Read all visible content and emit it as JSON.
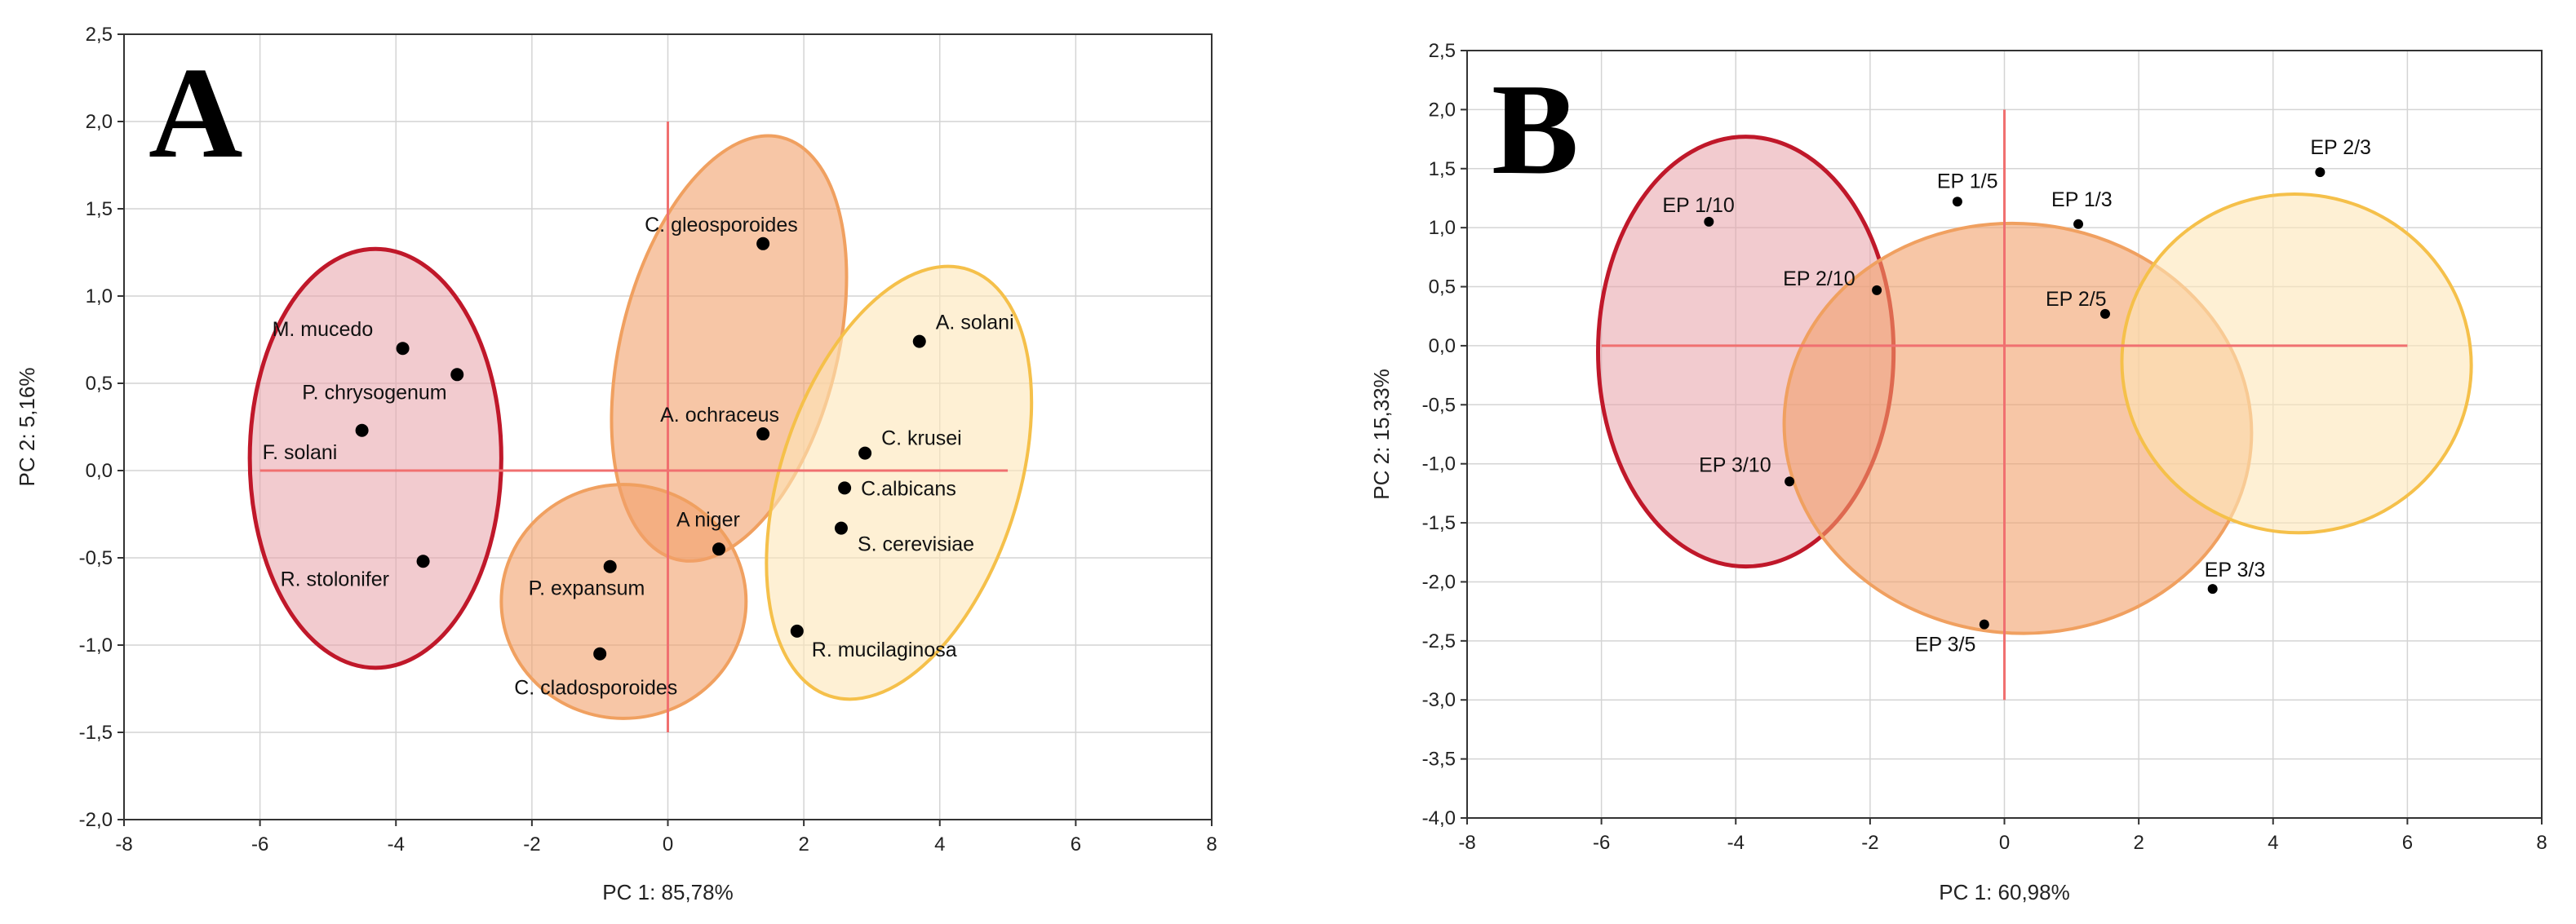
{
  "chart_data": [
    {
      "type": "scatter",
      "panel_label": "A",
      "xlabel": "PC 1: 85,78%",
      "ylabel": "PC 2: 5,16%",
      "xlim": [
        -8,
        8
      ],
      "ylim": [
        -2.0,
        2.5
      ],
      "xticks": [
        -8,
        -6,
        -4,
        -2,
        0,
        2,
        4,
        6,
        8
      ],
      "xtick_labels": [
        "-8",
        "-6",
        "-4",
        "-2",
        "0",
        "2",
        "4",
        "6",
        "8"
      ],
      "yticks": [
        2.5,
        2.0,
        1.5,
        1.0,
        0.5,
        0.0,
        -0.5,
        -1.0,
        -1.5,
        -2.0
      ],
      "ytick_labels": [
        "2,5",
        "2,0",
        "1,5",
        "1,0",
        "0,5",
        "0,0",
        "-0,5",
        "-1,0",
        "-1,5",
        "-2,0"
      ],
      "grid": true,
      "origin_lines": {
        "h": {
          "x": [
            -6,
            5
          ],
          "y": 0
        },
        "v": {
          "x": 0,
          "y": [
            -1.5,
            2.0
          ]
        }
      },
      "points": [
        {
          "label": "M. mucedo",
          "x": -3.9,
          "y": 0.7
        },
        {
          "label": "P. chrysogenum",
          "x": -3.1,
          "y": 0.55
        },
        {
          "label": "F. solani",
          "x": -4.5,
          "y": 0.23
        },
        {
          "label": "R. stolonifer",
          "x": -3.6,
          "y": -0.52
        },
        {
          "label": "C. gleosporoides",
          "x": 1.4,
          "y": 1.3
        },
        {
          "label": "A. ochraceus",
          "x": 1.4,
          "y": 0.21
        },
        {
          "label": "A niger",
          "x": 0.75,
          "y": -0.45
        },
        {
          "label": "P. expansum",
          "x": -0.85,
          "y": -0.55
        },
        {
          "label": "C. cladosporoides",
          "x": -1.0,
          "y": -1.05
        },
        {
          "label": "A. solani",
          "x": 3.7,
          "y": 0.74
        },
        {
          "label": "C. krusei",
          "x": 2.9,
          "y": 0.1
        },
        {
          "label": "C.albicans",
          "x": 2.6,
          "y": -0.1
        },
        {
          "label": "S. cerevisiae",
          "x": 2.55,
          "y": -0.33
        },
        {
          "label": "R. mucilaginosa",
          "x": 1.9,
          "y": -0.92
        }
      ],
      "groups": [
        {
          "name": "group-red",
          "cx": -4.3,
          "cy": 0.07,
          "rx": 1.85,
          "ry": 1.2,
          "angle": 0,
          "fill": "#e8a0a8",
          "fill_opacity": 0.55,
          "stroke": "#c0182a"
        },
        {
          "name": "group-orange-upper",
          "cx": 0.9,
          "cy": 0.7,
          "rx": 3.2,
          "ry": 0.62,
          "angle": -76,
          "fill": "#f2a06a",
          "fill_opacity": 0.6,
          "stroke": "#f0a060"
        },
        {
          "name": "group-orange-lower",
          "cx": -0.65,
          "cy": -0.75,
          "rx": 1.8,
          "ry": 0.67,
          "angle": 0,
          "fill": "#f2a06a",
          "fill_opacity": 0.6,
          "stroke": "#f0a060"
        },
        {
          "name": "group-yellow",
          "cx": 3.4,
          "cy": -0.07,
          "rx": 3.3,
          "ry": 0.68,
          "angle": -72,
          "fill": "#fde6b8",
          "fill_opacity": 0.6,
          "stroke": "#f5c04a"
        }
      ]
    },
    {
      "type": "scatter",
      "panel_label": "B",
      "xlabel": "PC 1: 60,98%",
      "ylabel": "PC 2: 15,33%",
      "xlim": [
        -8,
        8
      ],
      "ylim": [
        -4.0,
        2.5
      ],
      "xticks": [
        -8,
        -6,
        -4,
        -2,
        0,
        2,
        4,
        6,
        8
      ],
      "xtick_labels": [
        "-8",
        "-6",
        "-4",
        "-2",
        "0",
        "2",
        "4",
        "6",
        "8"
      ],
      "yticks": [
        2.5,
        2.0,
        1.5,
        1.0,
        0.5,
        0.0,
        -0.5,
        -1.0,
        -1.5,
        -2.0,
        -2.5,
        -3.0,
        -3.5,
        -4.0
      ],
      "ytick_labels": [
        "2,5",
        "2,0",
        "1,5",
        "1,0",
        "0,5",
        "0,0",
        "-0,5",
        "-1,0",
        "-1,5",
        "-2,0",
        "-2,5",
        "-3,0",
        "-3,5",
        "-4,0"
      ],
      "grid": true,
      "origin_lines": {
        "h": {
          "x": [
            -6,
            6
          ],
          "y": 0
        },
        "v": {
          "x": 0,
          "y": [
            -3.0,
            2.0
          ]
        }
      },
      "points": [
        {
          "label": "EP 1/10",
          "x": -4.4,
          "y": 1.05
        },
        {
          "label": "EP 2/10",
          "x": -1.9,
          "y": 0.47
        },
        {
          "label": "EP 3/10",
          "x": -3.2,
          "y": -1.15
        },
        {
          "label": "EP 1/5",
          "x": -0.7,
          "y": 1.22
        },
        {
          "label": "EP 1/3",
          "x": 1.1,
          "y": 1.03
        },
        {
          "label": "EP 2/5",
          "x": 1.5,
          "y": 0.27
        },
        {
          "label": "EP 3/5",
          "x": -0.3,
          "y": -2.36
        },
        {
          "label": "EP 2/3",
          "x": 4.7,
          "y": 1.47
        },
        {
          "label": "EP 3/3",
          "x": 3.1,
          "y": -2.06
        }
      ],
      "groups": [
        {
          "name": "group-red",
          "cx": -3.85,
          "cy": -0.05,
          "rx": 2.2,
          "ry": 1.82,
          "angle": 0,
          "fill": "#e8a0a8",
          "fill_opacity": 0.55,
          "stroke": "#c0182a"
        },
        {
          "name": "group-orange",
          "cx": 0.2,
          "cy": -0.7,
          "rx": 3.05,
          "ry": 1.98,
          "angle": -85,
          "fill": "#f2a06a",
          "fill_opacity": 0.6,
          "stroke": "#f0a060"
        },
        {
          "name": "group-yellow",
          "cx": 4.35,
          "cy": -0.15,
          "rx": 2.52,
          "ry": 1.48,
          "angle": -80,
          "fill": "#fde6b8",
          "fill_opacity": 0.6,
          "stroke": "#f5c04a"
        }
      ]
    }
  ]
}
